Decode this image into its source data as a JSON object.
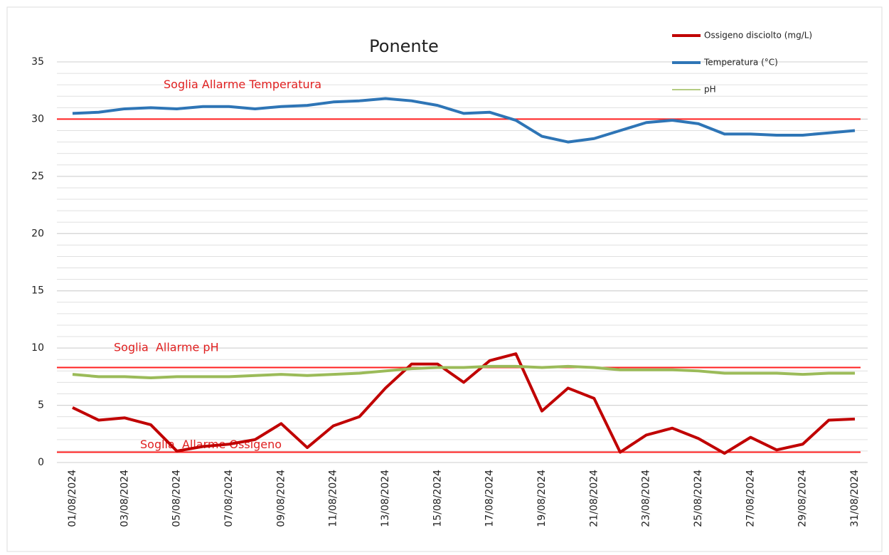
{
  "chart_data": {
    "type": "line",
    "title": "Ponente",
    "categories": [
      "01/08/2024",
      null,
      "03/08/2024",
      null,
      "05/08/2024",
      null,
      "07/08/2024",
      null,
      "09/08/2024",
      null,
      "11/08/2024",
      null,
      "13/08/2024",
      null,
      "15/08/2024",
      null,
      "17/08/2024",
      null,
      "19/08/2024",
      null,
      "21/08/2024",
      null,
      "23/08/2024",
      null,
      "25/08/2024",
      null,
      "27/08/2024",
      null,
      "29/08/2024",
      null,
      "31/08/2024"
    ],
    "series": [
      {
        "name": "Ossigeno disciolto (mg/L)",
        "color": "#c00000",
        "width": 4,
        "values": [
          4.8,
          3.7,
          3.9,
          3.3,
          1.0,
          1.4,
          1.6,
          2.0,
          3.4,
          1.3,
          3.2,
          4.0,
          6.5,
          8.6,
          8.6,
          7.0,
          8.9,
          9.5,
          4.5,
          6.5,
          5.6,
          0.9,
          2.4,
          3.0,
          2.1,
          0.8,
          2.2,
          1.1,
          1.6,
          3.7,
          3.8
        ]
      },
      {
        "name": "Temperatura (°C)",
        "color": "#2e75b6",
        "width": 4,
        "values": [
          30.5,
          30.6,
          30.9,
          31.0,
          30.9,
          31.1,
          31.1,
          30.9,
          31.1,
          31.2,
          31.5,
          31.6,
          31.8,
          31.6,
          31.2,
          30.5,
          30.6,
          29.9,
          28.5,
          28.0,
          28.3,
          29.0,
          29.7,
          29.9,
          29.6,
          28.7,
          28.7,
          28.6,
          28.6,
          28.8,
          29.0
        ]
      },
      {
        "name": "pH",
        "color": "#9bbb59",
        "width": 4,
        "values": [
          7.7,
          7.5,
          7.5,
          7.4,
          7.5,
          7.5,
          7.5,
          7.6,
          7.7,
          7.6,
          7.7,
          7.8,
          8.0,
          8.2,
          8.3,
          8.3,
          8.4,
          8.4,
          8.3,
          8.4,
          8.3,
          8.1,
          8.1,
          8.1,
          8.0,
          7.8,
          7.8,
          7.8,
          7.7,
          7.8,
          7.8
        ]
      }
    ],
    "thresholds": [
      {
        "label": "Soglia Allarme Temperatura",
        "value": 30,
        "color": "#ff2020"
      },
      {
        "label": "Soglia  Allarme pH",
        "value": 8.3,
        "color": "#ff2020"
      },
      {
        "label": "Soglia  Allarme Ossigeno",
        "value": 0.9,
        "color": "#ff2020"
      }
    ],
    "ylim": [
      0,
      35
    ],
    "yticks": [
      0,
      5,
      10,
      15,
      20,
      25,
      30,
      35
    ],
    "minor_grid_step": 1,
    "grid": true
  }
}
